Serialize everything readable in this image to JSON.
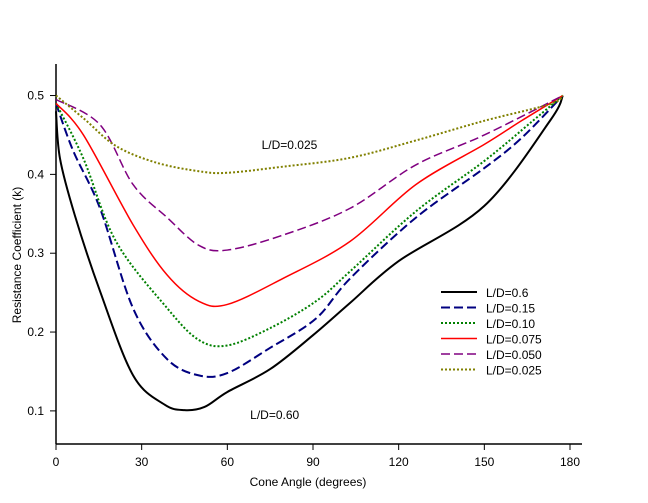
{
  "chart_data": {
    "type": "line",
    "title": "",
    "xlabel": "Cone Angle (degrees)",
    "ylabel": "Resistance Coefficient (k)",
    "xlim": [
      0,
      180
    ],
    "ylim": [
      0.058,
      0.54
    ],
    "xticks": [
      0,
      30,
      60,
      90,
      120,
      150,
      180
    ],
    "yticks": [
      0.1,
      0.2,
      0.3,
      0.4,
      0.5
    ],
    "grid": false,
    "legend_position": "right-middle",
    "series": [
      {
        "name": "L/D=0.6",
        "color": "#000000",
        "style": "solid",
        "x": [
          0,
          1.4,
          6.6,
          15.4,
          27,
          38,
          45,
          52,
          60,
          75,
          90,
          103,
          120,
          150,
          173,
          177.5
        ],
        "y": [
          0.48,
          0.42,
          0.348,
          0.252,
          0.145,
          0.108,
          0.101,
          0.105,
          0.124,
          0.153,
          0.196,
          0.237,
          0.29,
          0.36,
          0.468,
          0.5
        ]
      },
      {
        "name": "L/D=0.15",
        "color": "#000080",
        "style": "dashed",
        "x": [
          0,
          6,
          15.4,
          27,
          38.8,
          50,
          60,
          75,
          91,
          103,
          126,
          150,
          163,
          177.5
        ],
        "y": [
          0.49,
          0.43,
          0.357,
          0.23,
          0.166,
          0.145,
          0.148,
          0.18,
          0.217,
          0.268,
          0.345,
          0.408,
          0.446,
          0.5
        ]
      },
      {
        "name": "L/D=0.10",
        "color": "#008000",
        "style": "dotted",
        "x": [
          0,
          9.6,
          21,
          39,
          50,
          60,
          75,
          91,
          103,
          126,
          150,
          167,
          177.5
        ],
        "y": [
          0.49,
          0.42,
          0.315,
          0.23,
          0.19,
          0.183,
          0.205,
          0.239,
          0.277,
          0.353,
          0.417,
          0.468,
          0.5
        ]
      },
      {
        "name": "L/D=0.075",
        "color": "#ff0000",
        "style": "solid",
        "x": [
          0,
          9.6,
          27,
          39,
          50,
          60,
          79.5,
          103,
          126,
          150,
          163,
          177.5
        ],
        "y": [
          0.49,
          0.45,
          0.336,
          0.272,
          0.239,
          0.235,
          0.268,
          0.315,
          0.387,
          0.438,
          0.468,
          0.5
        ]
      },
      {
        "name": "L/D=0.050",
        "color": "#800080",
        "style": "dashed",
        "x": [
          0,
          15.4,
          27,
          39,
          50,
          60,
          79.5,
          103,
          126,
          150,
          177.5
        ],
        "y": [
          0.495,
          0.463,
          0.387,
          0.345,
          0.31,
          0.304,
          0.323,
          0.357,
          0.412,
          0.45,
          0.5
        ]
      },
      {
        "name": "L/D=0.025",
        "color": "#808000",
        "style": "dotted",
        "x": [
          0,
          10,
          21,
          35,
          50,
          60,
          80,
          103,
          126,
          150,
          173,
          177.5
        ],
        "y": [
          0.5,
          0.47,
          0.436,
          0.415,
          0.404,
          0.402,
          0.41,
          0.421,
          0.443,
          0.468,
          0.489,
          0.5
        ]
      }
    ],
    "annotations": [
      {
        "text": "L/D=0.025",
        "x": 72,
        "y": 0.432
      },
      {
        "text": "L/D=0.60",
        "x": 68,
        "y": 0.09
      }
    ]
  }
}
